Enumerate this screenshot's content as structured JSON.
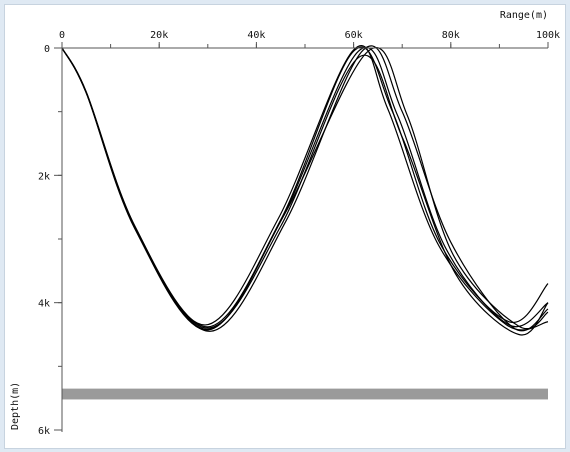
{
  "chart_data": {
    "type": "line",
    "title": "",
    "xlabel": "Range(m)",
    "ylabel": "Depth(m)",
    "x_axis": {
      "position": "top",
      "range": [
        0,
        100000
      ],
      "ticks": [
        {
          "value": 0,
          "label": "0"
        },
        {
          "value": 20000,
          "label": "20k"
        },
        {
          "value": 40000,
          "label": "40k"
        },
        {
          "value": 60000,
          "label": "60k"
        },
        {
          "value": 80000,
          "label": "80k"
        },
        {
          "value": 100000,
          "label": "100k"
        }
      ],
      "minor_step": 10000
    },
    "y_axis": {
      "inverted": true,
      "range": [
        0,
        6000
      ],
      "ticks": [
        {
          "value": 0,
          "label": "0"
        },
        {
          "value": 2000,
          "label": "2k"
        },
        {
          "value": 4000,
          "label": "4k"
        },
        {
          "value": 6000,
          "label": "6k"
        }
      ],
      "minor_step": 1000
    },
    "grid": false,
    "bottom_layer": {
      "top_depth": 5350,
      "bottom_depth": 5520,
      "color": "#9a9a9a"
    },
    "series_color": "#000000",
    "series": [
      {
        "x": [
          0,
          5000,
          15000,
          30000,
          45000,
          60000,
          68000,
          78000,
          92000,
          100000
        ],
        "y": [
          0,
          700,
          2800,
          4380,
          2700,
          50,
          1000,
          3100,
          4300,
          3700
        ]
      },
      {
        "x": [
          0,
          5000,
          15000,
          30000,
          45000,
          61000,
          69000,
          79000,
          92000,
          100000
        ],
        "y": [
          0,
          700,
          2820,
          4420,
          2720,
          50,
          1050,
          3150,
          4350,
          4000
        ]
      },
      {
        "x": [
          0,
          5000,
          15000,
          30500,
          46000,
          62000,
          70000,
          80000,
          93000,
          100000
        ],
        "y": [
          0,
          710,
          2840,
          4450,
          2730,
          30,
          1000,
          3050,
          4400,
          4100
        ]
      },
      {
        "x": [
          0,
          5000,
          15000,
          29500,
          44500,
          60000,
          67000,
          77500,
          91500,
          100000
        ],
        "y": [
          0,
          690,
          2800,
          4350,
          2680,
          30,
          950,
          3100,
          4350,
          4300
        ]
      },
      {
        "x": [
          0,
          5000,
          15000,
          30000,
          45000,
          61000,
          70000,
          81000,
          94000,
          100000
        ],
        "y": [
          0,
          700,
          2830,
          4400,
          2800,
          150,
          1400,
          3550,
          4500,
          4000
        ]
      },
      {
        "x": [
          0,
          5000,
          15000,
          30000,
          45500,
          63000,
          71000,
          80500,
          94000,
          100000
        ],
        "y": [
          0,
          705,
          2830,
          4430,
          2650,
          50,
          1050,
          3250,
          4370,
          4150
        ]
      }
    ]
  }
}
